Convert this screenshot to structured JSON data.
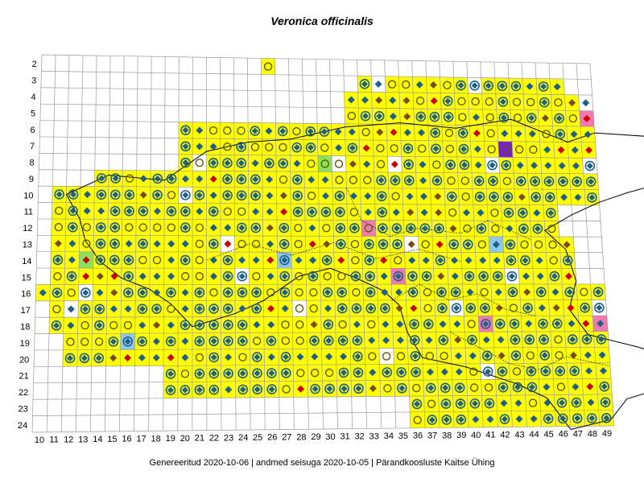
{
  "map": {
    "title": "Veronica officinalis",
    "footer": {
      "generated": "Genereeritud 2020-10-06",
      "data_state": "andmed seisuga 2020-10-05",
      "organization": "Pärandkoosluste Kaitse Ühing",
      "separator": "|"
    },
    "grid": {
      "row_labels": [
        "2",
        "3",
        "4",
        "5",
        "6",
        "7",
        "8",
        "9",
        "10",
        "11",
        "12",
        "13",
        "14",
        "15",
        "16",
        "17",
        "18",
        "19",
        "20",
        "21",
        "22",
        "23",
        "24"
      ],
      "col_labels": [
        "10",
        "11",
        "12",
        "13",
        "14",
        "15",
        "16",
        "17",
        "18",
        "19",
        "20",
        "21",
        "22",
        "23",
        "24",
        "25",
        "26",
        "27",
        "28",
        "29",
        "30",
        "31",
        "32",
        "33",
        "34",
        "35",
        "36",
        "37",
        "38",
        "39",
        "40",
        "41",
        "42",
        "43",
        "44",
        "45",
        "46",
        "47",
        "48",
        "49"
      ]
    },
    "colors": {
      "occupied_cell": "#ffff00",
      "grid_line": "#9a9a9a",
      "diamond_marker": "#1f5f8b",
      "circle_marker": "#5a5a00",
      "ring_marker": "#1f5f8b",
      "red_marker": "#cc0000",
      "brown_marker": "#7a4a1a",
      "highlight_pink": "#f07ab0",
      "highlight_green": "#8ee05a",
      "highlight_blue": "#8ec8e8",
      "highlight_purple": "#7a1fd0",
      "coastline": "#000000"
    },
    "occupied_cells": [
      [
        2,
        3,
        [
          16
        ]
      ],
      [
        3,
        [
          23,
          38
        ]
      ],
      [
        4,
        [
          22,
          40
        ]
      ],
      [
        5,
        [
          22,
          41
        ]
      ],
      [
        6,
        [
          10,
          45
        ]
      ],
      [
        7,
        [
          10,
          46
        ]
      ],
      [
        8,
        [
          10,
          46
        ]
      ],
      [
        9,
        [
          4,
          46
        ]
      ],
      [
        10,
        [
          1,
          47
        ]
      ],
      [
        11,
        [
          1,
          37
        ]
      ],
      [
        12,
        [
          1,
          37
        ]
      ],
      [
        13,
        [
          1,
          38
        ]
      ],
      [
        14,
        [
          1,
          38
        ]
      ],
      [
        15,
        [
          1,
          38
        ]
      ],
      [
        16,
        [
          0,
          40
        ]
      ],
      [
        17,
        [
          1,
          41
        ]
      ],
      [
        18,
        [
          1,
          41
        ]
      ],
      [
        19,
        [
          2,
          44
        ]
      ],
      [
        20,
        [
          2,
          45
        ]
      ],
      [
        21,
        [
          9,
          45
        ]
      ],
      [
        22,
        [
          9,
          45
        ]
      ],
      [
        23,
        [
          26,
          45
        ]
      ],
      [
        24,
        [
          26,
          44
        ]
      ]
    ]
  }
}
